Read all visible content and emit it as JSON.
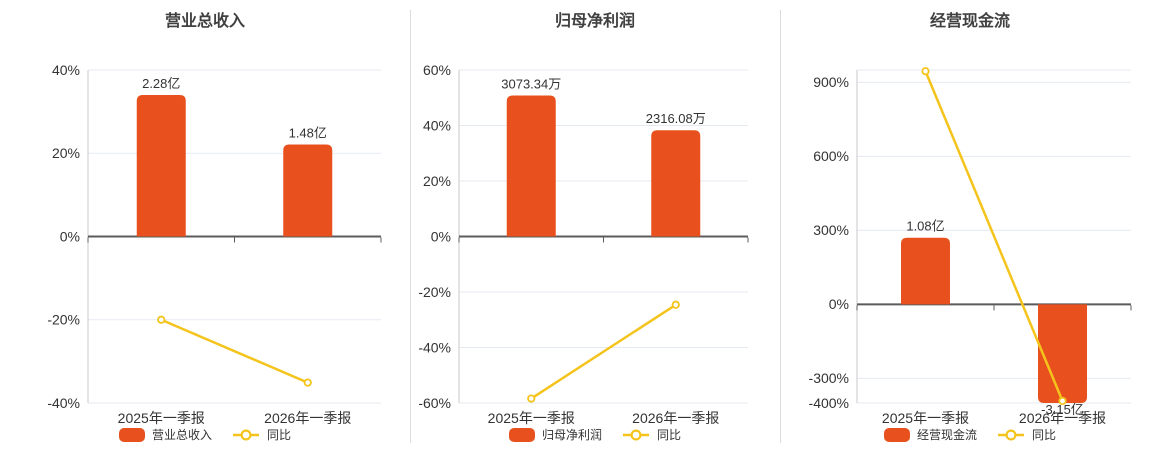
{
  "page": {
    "background": "#ffffff",
    "category_labels": [
      "2025年一季报",
      "2026年一季报"
    ]
  },
  "colors": {
    "bar": "#e8511d",
    "line": "#f4c41c",
    "grid_line": "#e5eaf2",
    "zero_line": "#5b5b5b",
    "axis_line": "#c8c8c8",
    "divider": "#dcdcdc",
    "title_text": "#404040",
    "tick_text": "#333333",
    "value_text": "#333333",
    "background": "#ffffff"
  },
  "chart_data": [
    {
      "type": "bar+line",
      "title": "营业总收入",
      "categories": [
        "2025年一季报",
        "2026年一季报"
      ],
      "bar_series": {
        "name": "营业总收入",
        "value_labels": [
          "2.28亿",
          "1.48亿"
        ],
        "axis_values": [
          34,
          22.1
        ],
        "label_positions": [
          "above",
          "above"
        ],
        "clipped": [
          false,
          false
        ]
      },
      "line_series": {
        "name": "同比",
        "values": [
          -20,
          -35.1
        ],
        "unit": "%"
      },
      "yticks": [
        40,
        20,
        0,
        -20,
        -40
      ],
      "ylim": [
        -40,
        40
      ],
      "ytick_suffix": "%",
      "grid": true,
      "legend_position": "bottom"
    },
    {
      "type": "bar+line",
      "title": "归母净利润",
      "categories": [
        "2025年一季报",
        "2026年一季报"
      ],
      "bar_series": {
        "name": "归母净利润",
        "value_labels": [
          "3073.34万",
          "2316.08万"
        ],
        "axis_values": [
          50.8,
          38.3
        ],
        "label_positions": [
          "above",
          "above"
        ],
        "clipped": [
          false,
          false
        ]
      },
      "line_series": {
        "name": "同比",
        "values": [
          -58.4,
          -24.6
        ],
        "unit": "%"
      },
      "yticks": [
        60,
        40,
        20,
        0,
        -20,
        -40,
        -60
      ],
      "ylim": [
        -60,
        60
      ],
      "ytick_suffix": "%",
      "grid": true,
      "legend_position": "bottom"
    },
    {
      "type": "bar+line",
      "title": "经营现金流",
      "categories": [
        "2025年一季报",
        "2026年一季报"
      ],
      "bar_series": {
        "name": "经营现金流",
        "value_labels": [
          "1.08亿",
          "-3.15亿"
        ],
        "axis_values": [
          270,
          -400
        ],
        "label_positions": [
          "above",
          "below"
        ],
        "clipped": [
          false,
          true
        ]
      },
      "line_series": {
        "name": "同比",
        "values": [
          945,
          -391.7
        ],
        "unit": "%"
      },
      "yticks": [
        900,
        600,
        300,
        0,
        -300,
        -400
      ],
      "ylim": [
        -400,
        950
      ],
      "ytick_suffix": "%",
      "grid": true,
      "legend_position": "bottom"
    }
  ]
}
